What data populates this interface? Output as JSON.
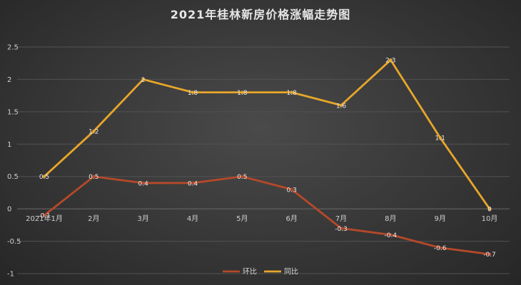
{
  "chart_data": {
    "type": "line",
    "title": "2021年桂林新房价格涨幅走势图",
    "xlabel": "",
    "ylabel": "",
    "categories": [
      "2021年1月",
      "2月",
      "3月",
      "4月",
      "5月",
      "6月",
      "7月",
      "8月",
      "9月",
      "10月"
    ],
    "series": [
      {
        "name": "环比",
        "color": "#b5492a",
        "values": [
          -0.1,
          0.5,
          0.4,
          0.4,
          0.5,
          0.3,
          -0.3,
          -0.4,
          -0.6,
          -0.7
        ],
        "labels": [
          "-0.1",
          "0.5",
          "0.4",
          "0.4",
          "0.5",
          "0.3",
          "-0.3",
          "-0.4",
          "-0.6",
          "-0.7"
        ]
      },
      {
        "name": "同比",
        "color": "#e8a62a",
        "values": [
          0.5,
          1.2,
          2,
          1.8,
          1.8,
          1.8,
          1.6,
          2.3,
          1.1,
          0
        ],
        "labels": [
          "0.5",
          "1.2",
          "2",
          "1.8",
          "1.8",
          "1.8",
          "1.6",
          "2.3",
          "1.1",
          "0"
        ]
      }
    ],
    "ylim": [
      -1,
      2.5
    ],
    "yticks": [
      "2.5",
      "2",
      "1.5",
      "1",
      "0.5",
      "0",
      "-0.5",
      "-1"
    ],
    "grid": true,
    "legend": "bottom"
  }
}
